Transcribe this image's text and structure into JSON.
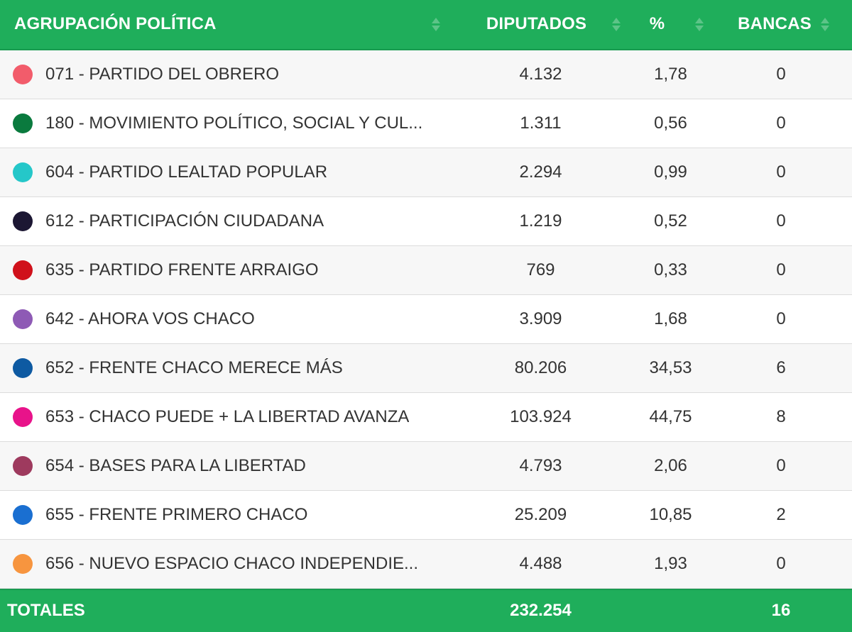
{
  "colors": {
    "header_bg": "#1fae5b",
    "footer_bg": "#1fae5b",
    "row_odd": "#f7f7f7",
    "row_even": "#ffffff",
    "text": "#333333"
  },
  "header": {
    "party": "AGRUPACIÓN POLÍTICA",
    "dip": "DIPUTADOS",
    "pct": "%",
    "ban": "BANCAS"
  },
  "rows": [
    {
      "name": "071 - PARTIDO DEL OBRERO",
      "dip": "4.132",
      "pct": "1,78",
      "ban": "0",
      "color": "#f25c6b"
    },
    {
      "name": "180 - MOVIMIENTO POLÍTICO, SOCIAL Y CUL...",
      "dip": "1.311",
      "pct": "0,56",
      "ban": "0",
      "color": "#0a7a3e"
    },
    {
      "name": "604 - PARTIDO LEALTAD POPULAR",
      "dip": "2.294",
      "pct": "0,99",
      "ban": "0",
      "color": "#25c7c9"
    },
    {
      "name": "612 - PARTICIPACIÓN CIUDADANA",
      "dip": "1.219",
      "pct": "0,52",
      "ban": "0",
      "color": "#1c1733"
    },
    {
      "name": "635 - PARTIDO FRENTE ARRAIGO",
      "dip": "769",
      "pct": "0,33",
      "ban": "0",
      "color": "#d0111b"
    },
    {
      "name": "642 - AHORA VOS CHACO",
      "dip": "3.909",
      "pct": "1,68",
      "ban": "0",
      "color": "#8e5ab5"
    },
    {
      "name": "652 - FRENTE CHACO MERECE MÁS",
      "dip": "80.206",
      "pct": "34,53",
      "ban": "6",
      "color": "#0e5aa2"
    },
    {
      "name": "653 - CHACO PUEDE + LA LIBERTAD AVANZA",
      "dip": "103.924",
      "pct": "44,75",
      "ban": "8",
      "color": "#e8138a"
    },
    {
      "name": "654 - BASES PARA LA LIBERTAD",
      "dip": "4.793",
      "pct": "2,06",
      "ban": "0",
      "color": "#9e3a5e"
    },
    {
      "name": "655 - FRENTE PRIMERO CHACO",
      "dip": "25.209",
      "pct": "10,85",
      "ban": "2",
      "color": "#1a6fd1"
    },
    {
      "name": "656 - NUEVO ESPACIO CHACO INDEPENDIE...",
      "dip": "4.488",
      "pct": "1,93",
      "ban": "0",
      "color": "#f7953f"
    }
  ],
  "totals": {
    "label": "TOTALES",
    "dip": "232.254",
    "ban": "16"
  }
}
